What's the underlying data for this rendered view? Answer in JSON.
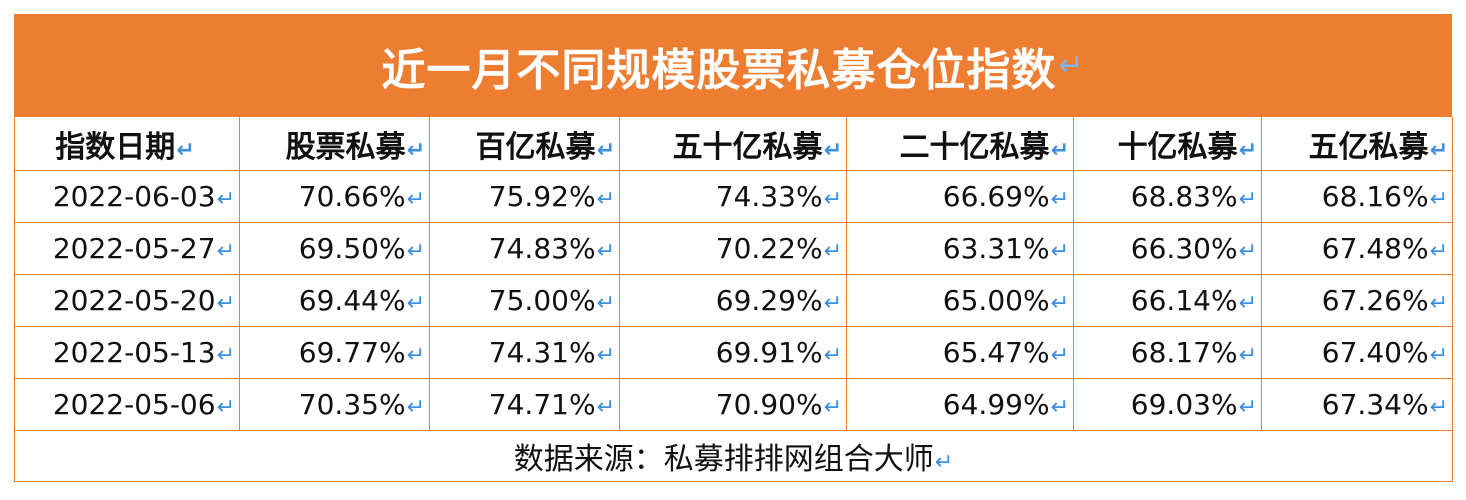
{
  "title": "近一月不同规模股票私募仓位指数",
  "return_mark": "↵",
  "arrow_mark": "↵",
  "headers": [
    "指数日期",
    "股票私募",
    "百亿私募",
    "五十亿私募",
    "二十亿私募",
    "十亿私募",
    "五亿私募"
  ],
  "rows": [
    [
      "2022-06-03",
      "70.66%",
      "75.92%",
      "74.33%",
      "66.69%",
      "68.83%",
      "68.16%"
    ],
    [
      "2022-05-27",
      "69.50%",
      "74.83%",
      "70.22%",
      "63.31%",
      "66.30%",
      "67.48%"
    ],
    [
      "2022-05-20",
      "69.44%",
      "75.00%",
      "69.29%",
      "65.00%",
      "66.14%",
      "67.26%"
    ],
    [
      "2022-05-13",
      "69.77%",
      "74.31%",
      "69.91%",
      "65.47%",
      "68.17%",
      "67.40%"
    ],
    [
      "2022-05-06",
      "70.35%",
      "74.71%",
      "70.90%",
      "64.99%",
      "69.03%",
      "67.34%"
    ]
  ],
  "source": "数据来源：私募排排网组合大师",
  "colors": {
    "header_bg": "#ED7D31",
    "border": "#ED7D31",
    "mark": "#3d8fe0"
  }
}
